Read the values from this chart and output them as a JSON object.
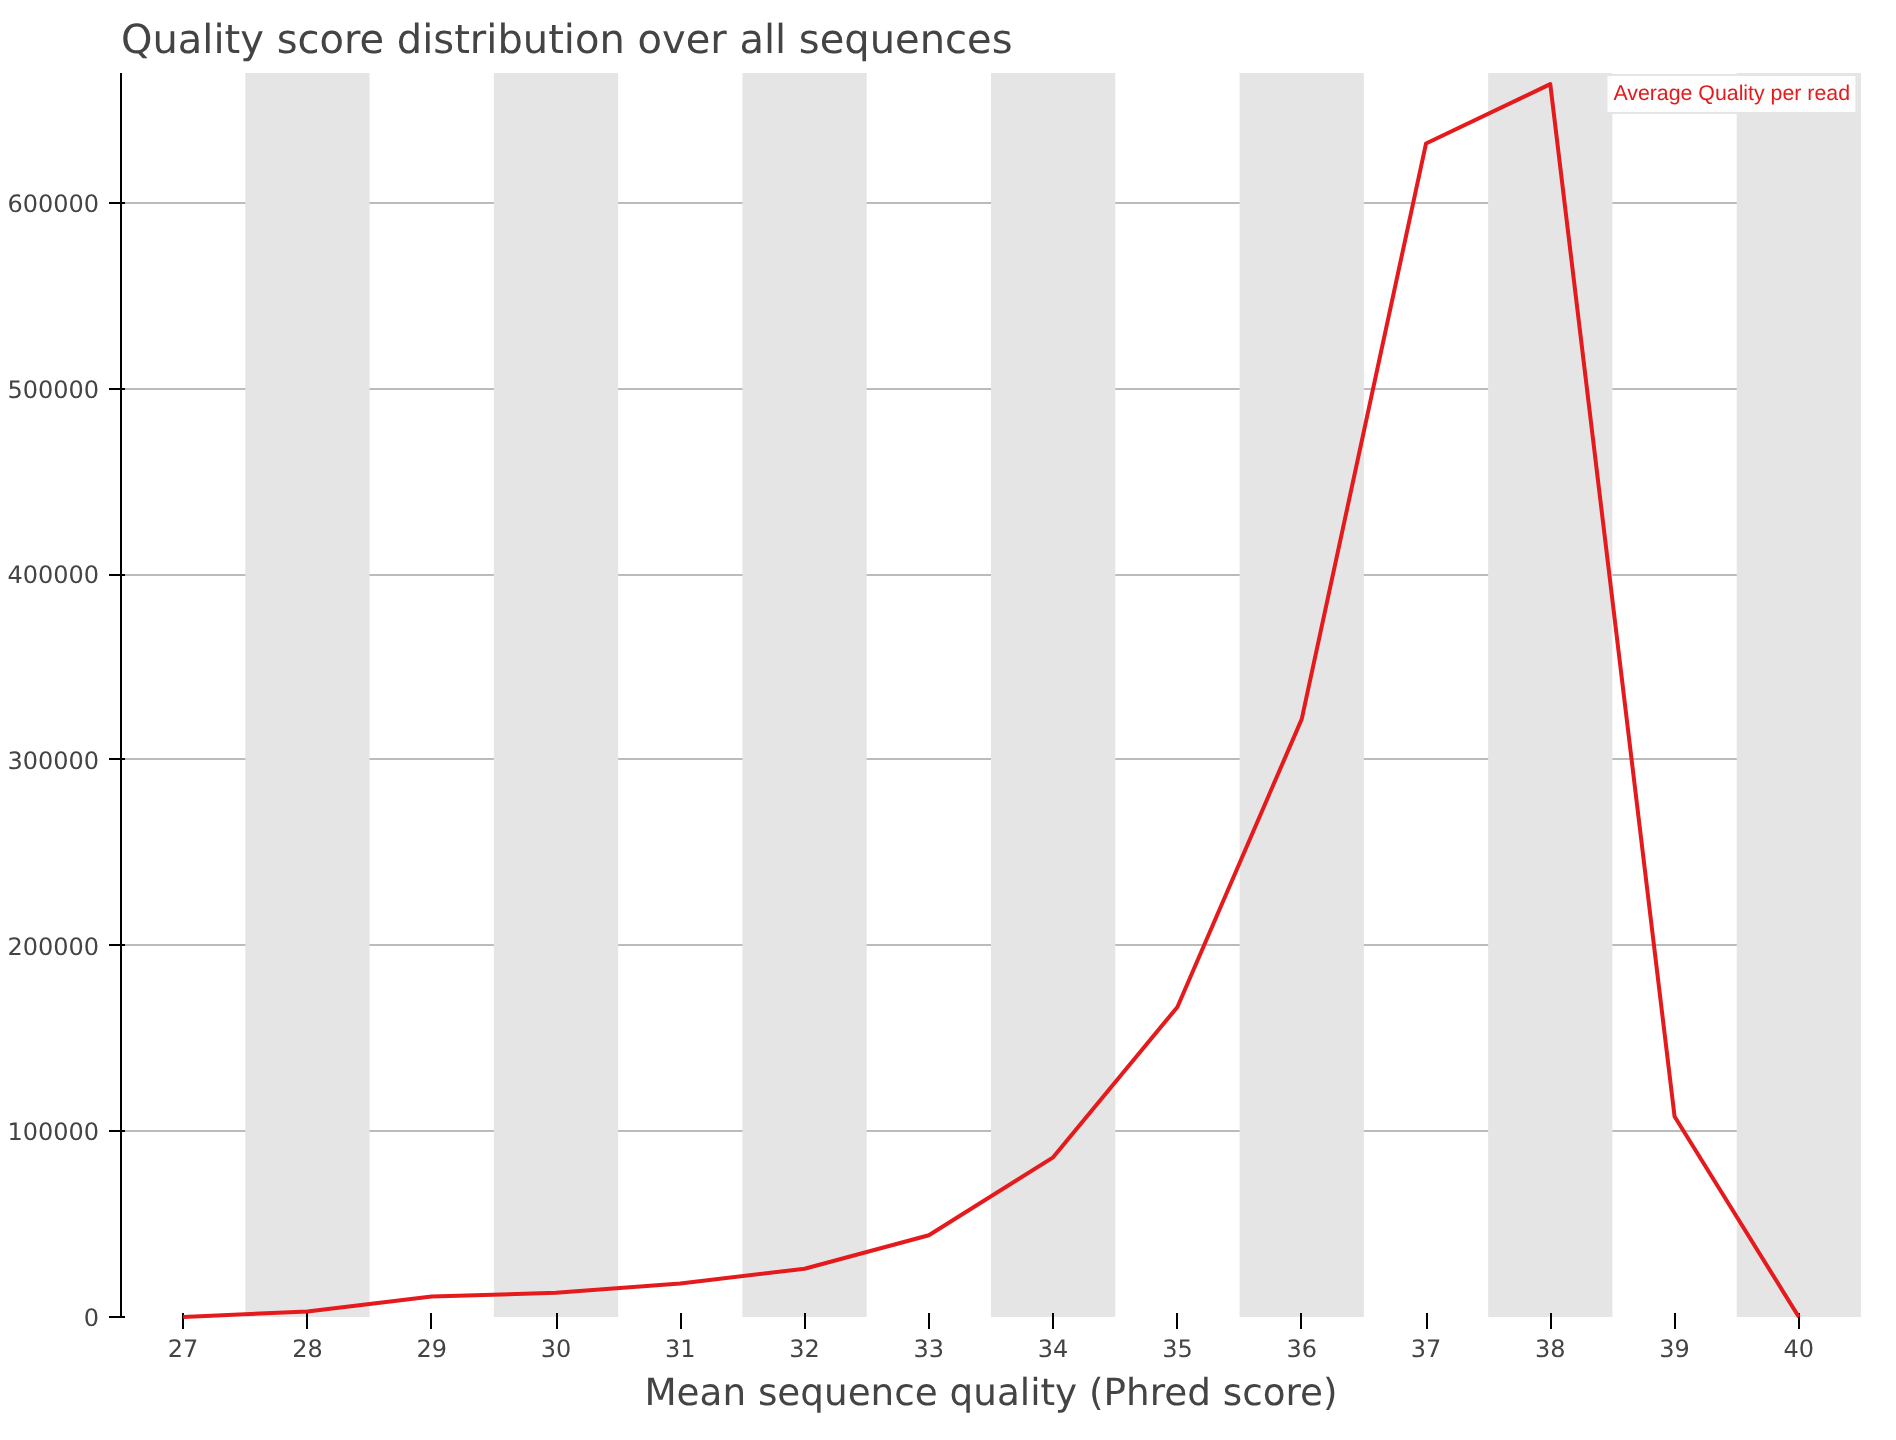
{
  "chart_data": {
    "type": "line",
    "title": "Quality score distribution over all sequences",
    "xlabel": "Mean sequence quality (Phred score)",
    "x": [
      27,
      28,
      29,
      30,
      31,
      32,
      33,
      34,
      35,
      36,
      37,
      38,
      39,
      40
    ],
    "series": [
      {
        "name": "Average Quality per read",
        "color": "#e41a1c",
        "values": [
          0,
          3000,
          11000,
          13000,
          18000,
          26000,
          44000,
          86000,
          167000,
          322000,
          632000,
          664000,
          108000,
          0
        ]
      }
    ],
    "xlim": [
      26.5,
      40.5
    ],
    "ylim": [
      0,
      670000
    ],
    "xticks": [
      27,
      28,
      29,
      30,
      31,
      32,
      33,
      34,
      35,
      36,
      37,
      38,
      39,
      40
    ],
    "yticks": [
      0,
      100000,
      200000,
      300000,
      400000,
      500000,
      600000
    ],
    "bands": [
      {
        "axis": "x",
        "from": 27.5,
        "to": 28.5,
        "color": "#e5e5e5"
      },
      {
        "axis": "x",
        "from": 29.5,
        "to": 30.5,
        "color": "#e5e5e5"
      },
      {
        "axis": "x",
        "from": 31.5,
        "to": 32.5,
        "color": "#e5e5e5"
      },
      {
        "axis": "x",
        "from": 33.5,
        "to": 34.5,
        "color": "#e5e5e5"
      },
      {
        "axis": "x",
        "from": 35.5,
        "to": 36.5,
        "color": "#e5e5e5"
      },
      {
        "axis": "x",
        "from": 37.5,
        "to": 38.5,
        "color": "#e5e5e5"
      },
      {
        "axis": "x",
        "from": 39.5,
        "to": 40.5,
        "color": "#e5e5e5"
      }
    ],
    "grid": "y",
    "legend": "top right",
    "marker": "none",
    "line_style": "solid"
  }
}
